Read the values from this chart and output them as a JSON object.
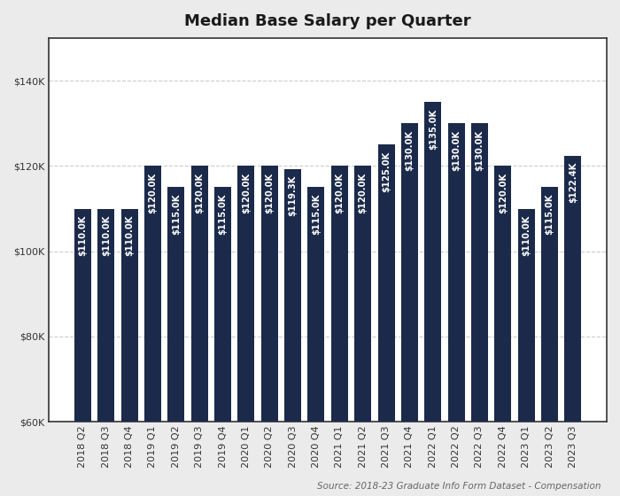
{
  "title": "Median Base Salary per Quarter",
  "source": "Source: 2018-23 Graduate Info Form Dataset - Compensation",
  "categories": [
    "2018 Q2",
    "2018 Q3",
    "2018 Q4",
    "2019 Q1",
    "2019 Q2",
    "2019 Q3",
    "2019 Q4",
    "2020 Q1",
    "2020 Q2",
    "2020 Q3",
    "2020 Q4",
    "2021 Q1",
    "2021 Q2",
    "2021 Q3",
    "2021 Q4",
    "2022 Q1",
    "2022 Q2",
    "2022 Q3",
    "2022 Q4",
    "2023 Q1",
    "2023 Q2",
    "2023 Q3"
  ],
  "values": [
    110000,
    110000,
    110000,
    120000,
    115000,
    120000,
    115000,
    120000,
    120000,
    119300,
    115000,
    120000,
    120000,
    125000,
    130000,
    135000,
    130000,
    130000,
    120000,
    110000,
    115000,
    122400
  ],
  "labels": [
    "$110.0K",
    "$110.0K",
    "$110.0K",
    "$120.0K",
    "$115.0K",
    "$120.0K",
    "$115.0K",
    "$120.0K",
    "$120.0K",
    "$119.3K",
    "$115.0K",
    "$120.0K",
    "$120.0K",
    "$125.0K",
    "$130.0K",
    "$135.0K",
    "$130.0K",
    "$130.0K",
    "$120.0K",
    "$110.0K",
    "$115.0K",
    "$122.4K"
  ],
  "bar_color": "#1B2A4A",
  "background_color": "#EBEBEB",
  "plot_background_color": "#FFFFFF",
  "ylim": [
    60000,
    150000
  ],
  "yticks": [
    60000,
    80000,
    100000,
    120000,
    140000
  ],
  "ytick_labels": [
    "$60K",
    "$80K",
    "$100K",
    "$120K",
    "$140K"
  ],
  "grid_color": "#CCCCCC",
  "title_fontsize": 13,
  "label_fontsize": 7.2,
  "tick_fontsize": 8,
  "source_fontsize": 7.5
}
